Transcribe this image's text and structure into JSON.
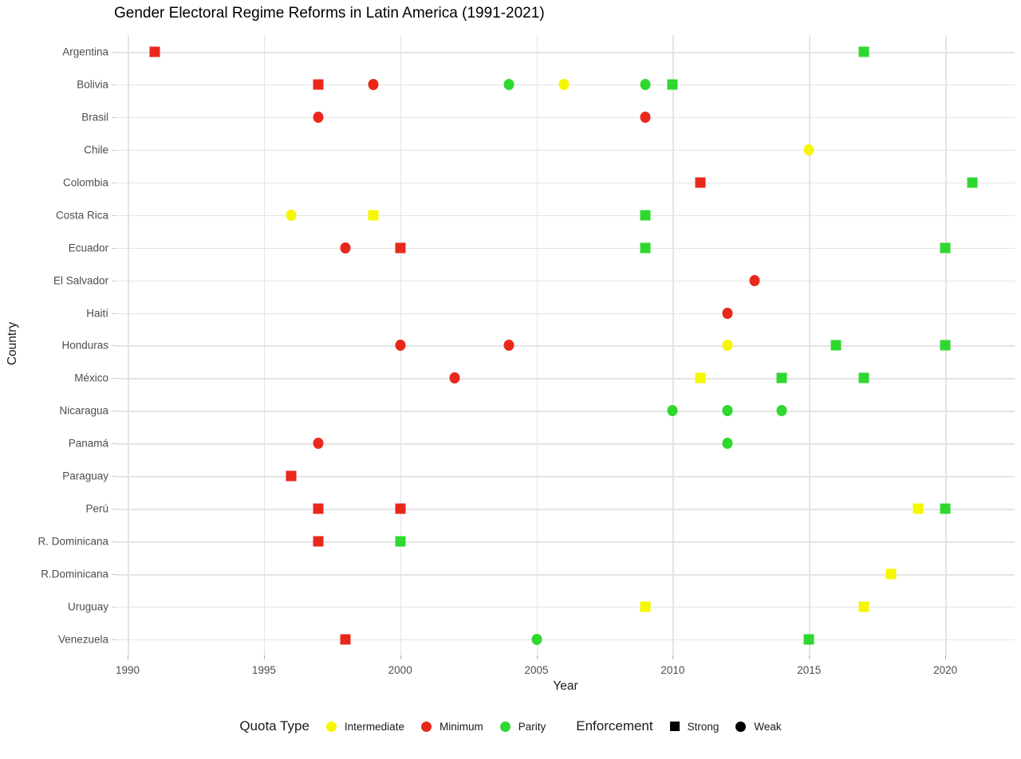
{
  "chart_data": {
    "type": "scatter",
    "title": "Gender Electoral Regime Reforms in Latin America (1991-2021)",
    "xlabel": "Year",
    "ylabel": "Country",
    "x_ticks": [
      1990,
      1995,
      2000,
      2005,
      2010,
      2015,
      2020
    ],
    "xlim": [
      1989.6,
      2022.5
    ],
    "grid": true,
    "legend_position": "bottom",
    "categories": [
      "Argentina",
      "Bolivia",
      "Brasil",
      "Chile",
      "Colombia",
      "Costa Rica",
      "Ecuador",
      "El Salvador",
      "Haití",
      "Honduras",
      "México",
      "Nicaragua",
      "Panamá",
      "Paraguay",
      "Perú",
      "R. Dominicana",
      "R.Dominicana",
      "Uruguay",
      "Venezuela"
    ],
    "quota_colors": {
      "Intermediate": "#f6f600",
      "Minimum": "#e9281c",
      "Parity": "#2fd82f"
    },
    "shape_by_enforcement": {
      "Strong": "square",
      "Weak": "circle"
    },
    "points": [
      {
        "country": "Argentina",
        "year": 1991,
        "quota": "Minimum",
        "enforcement": "Strong"
      },
      {
        "country": "Argentina",
        "year": 2017,
        "quota": "Parity",
        "enforcement": "Strong"
      },
      {
        "country": "Bolivia",
        "year": 1997,
        "quota": "Minimum",
        "enforcement": "Strong"
      },
      {
        "country": "Bolivia",
        "year": 1999,
        "quota": "Minimum",
        "enforcement": "Weak"
      },
      {
        "country": "Bolivia",
        "year": 2004,
        "quota": "Parity",
        "enforcement": "Weak"
      },
      {
        "country": "Bolivia",
        "year": 2006,
        "quota": "Intermediate",
        "enforcement": "Weak"
      },
      {
        "country": "Bolivia",
        "year": 2009,
        "quota": "Parity",
        "enforcement": "Weak"
      },
      {
        "country": "Bolivia",
        "year": 2010,
        "quota": "Parity",
        "enforcement": "Strong"
      },
      {
        "country": "Brasil",
        "year": 1997,
        "quota": "Minimum",
        "enforcement": "Weak"
      },
      {
        "country": "Brasil",
        "year": 2009,
        "quota": "Minimum",
        "enforcement": "Weak"
      },
      {
        "country": "Chile",
        "year": 2015,
        "quota": "Intermediate",
        "enforcement": "Weak"
      },
      {
        "country": "Colombia",
        "year": 2011,
        "quota": "Minimum",
        "enforcement": "Strong"
      },
      {
        "country": "Colombia",
        "year": 2021,
        "quota": "Parity",
        "enforcement": "Strong"
      },
      {
        "country": "Costa Rica",
        "year": 1996,
        "quota": "Intermediate",
        "enforcement": "Weak"
      },
      {
        "country": "Costa Rica",
        "year": 1999,
        "quota": "Intermediate",
        "enforcement": "Strong"
      },
      {
        "country": "Costa Rica",
        "year": 2009,
        "quota": "Parity",
        "enforcement": "Strong"
      },
      {
        "country": "Ecuador",
        "year": 1998,
        "quota": "Minimum",
        "enforcement": "Weak"
      },
      {
        "country": "Ecuador",
        "year": 2000,
        "quota": "Minimum",
        "enforcement": "Strong"
      },
      {
        "country": "Ecuador",
        "year": 2009,
        "quota": "Parity",
        "enforcement": "Strong"
      },
      {
        "country": "Ecuador",
        "year": 2020,
        "quota": "Parity",
        "enforcement": "Strong"
      },
      {
        "country": "El Salvador",
        "year": 2013,
        "quota": "Minimum",
        "enforcement": "Weak"
      },
      {
        "country": "Haití",
        "year": 2012,
        "quota": "Minimum",
        "enforcement": "Weak"
      },
      {
        "country": "Honduras",
        "year": 2000,
        "quota": "Minimum",
        "enforcement": "Weak"
      },
      {
        "country": "Honduras",
        "year": 2004,
        "quota": "Minimum",
        "enforcement": "Weak"
      },
      {
        "country": "Honduras",
        "year": 2012,
        "quota": "Intermediate",
        "enforcement": "Weak"
      },
      {
        "country": "Honduras",
        "year": 2016,
        "quota": "Parity",
        "enforcement": "Strong"
      },
      {
        "country": "Honduras",
        "year": 2020,
        "quota": "Parity",
        "enforcement": "Strong"
      },
      {
        "country": "México",
        "year": 2002,
        "quota": "Minimum",
        "enforcement": "Weak"
      },
      {
        "country": "México",
        "year": 2011,
        "quota": "Intermediate",
        "enforcement": "Strong"
      },
      {
        "country": "México",
        "year": 2014,
        "quota": "Parity",
        "enforcement": "Strong"
      },
      {
        "country": "México",
        "year": 2017,
        "quota": "Parity",
        "enforcement": "Strong"
      },
      {
        "country": "Nicaragua",
        "year": 2010,
        "quota": "Parity",
        "enforcement": "Weak"
      },
      {
        "country": "Nicaragua",
        "year": 2012,
        "quota": "Parity",
        "enforcement": "Weak"
      },
      {
        "country": "Nicaragua",
        "year": 2014,
        "quota": "Parity",
        "enforcement": "Weak"
      },
      {
        "country": "Panamá",
        "year": 1997,
        "quota": "Minimum",
        "enforcement": "Weak"
      },
      {
        "country": "Panamá",
        "year": 2012,
        "quota": "Parity",
        "enforcement": "Weak"
      },
      {
        "country": "Paraguay",
        "year": 1996,
        "quota": "Minimum",
        "enforcement": "Strong"
      },
      {
        "country": "Perú",
        "year": 1997,
        "quota": "Minimum",
        "enforcement": "Strong"
      },
      {
        "country": "Perú",
        "year": 2000,
        "quota": "Minimum",
        "enforcement": "Strong"
      },
      {
        "country": "Perú",
        "year": 2019,
        "quota": "Intermediate",
        "enforcement": "Strong"
      },
      {
        "country": "Perú",
        "year": 2020,
        "quota": "Parity",
        "enforcement": "Strong"
      },
      {
        "country": "R. Dominicana",
        "year": 1997,
        "quota": "Minimum",
        "enforcement": "Strong"
      },
      {
        "country": "R. Dominicana",
        "year": 2000,
        "quota": "Parity",
        "enforcement": "Strong"
      },
      {
        "country": "R.Dominicana",
        "year": 2018,
        "quota": "Intermediate",
        "enforcement": "Strong"
      },
      {
        "country": "Uruguay",
        "year": 2009,
        "quota": "Intermediate",
        "enforcement": "Strong"
      },
      {
        "country": "Uruguay",
        "year": 2017,
        "quota": "Intermediate",
        "enforcement": "Strong"
      },
      {
        "country": "Venezuela",
        "year": 1998,
        "quota": "Minimum",
        "enforcement": "Strong"
      },
      {
        "country": "Venezuela",
        "year": 2005,
        "quota": "Parity",
        "enforcement": "Weak"
      },
      {
        "country": "Venezuela",
        "year": 2015,
        "quota": "Parity",
        "enforcement": "Strong"
      }
    ],
    "legend": {
      "quota_title": "Quota Type",
      "quota_items": [
        {
          "label": "Intermediate",
          "color": "#f6f600"
        },
        {
          "label": "Minimum",
          "color": "#e9281c"
        },
        {
          "label": "Parity",
          "color": "#2fd82f"
        }
      ],
      "enforcement_title": "Enforcement",
      "enforcement_items": [
        {
          "label": "Strong",
          "shape": "square",
          "color": "#000000"
        },
        {
          "label": "Weak",
          "shape": "circle",
          "color": "#000000"
        }
      ]
    }
  }
}
